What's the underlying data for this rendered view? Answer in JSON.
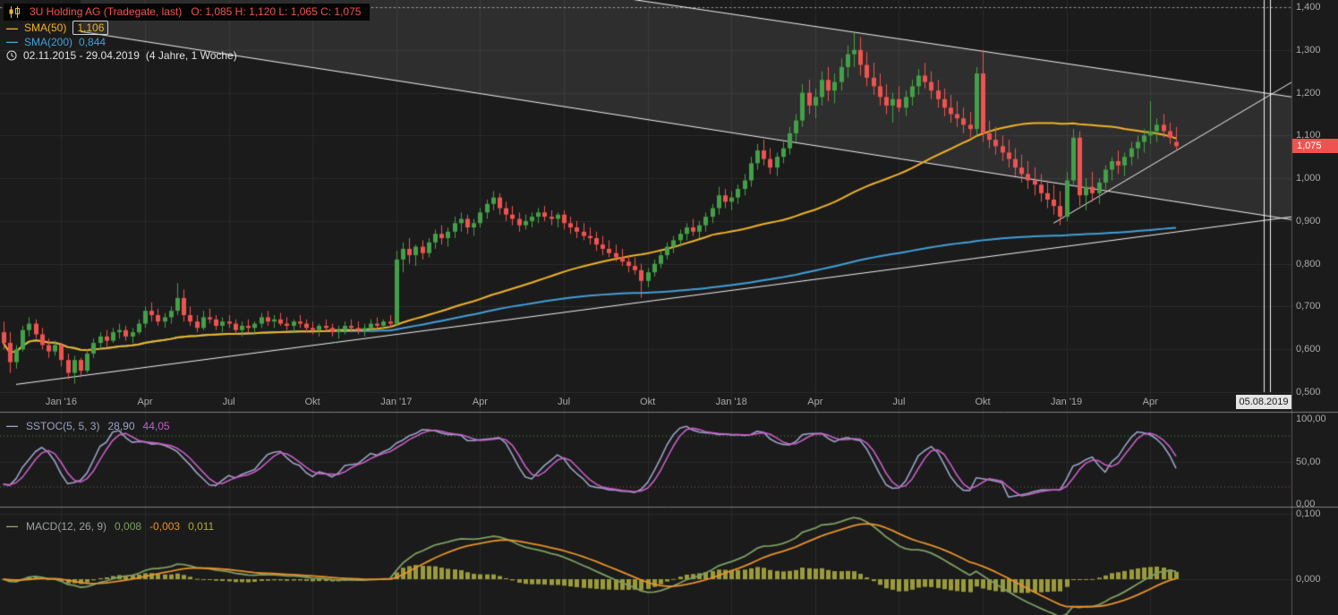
{
  "header": {
    "title": "3U Holding AG (Tradegate, last)",
    "ohlc_text": "O: 1,085  H: 1,120  L: 1,065  C: 1,075",
    "sma50_label": "SMA(50)",
    "sma50_value": "1,106",
    "sma200_label": "SMA(200)",
    "sma200_value": "0,844",
    "date_range": "02.11.2015 - 29.04.2019",
    "range_detail": "(4 Jahre, 1 Woche)"
  },
  "price_tag": "1,075",
  "date_tag": "05.08.2019",
  "panes": {
    "sstoc": {
      "label": "SSTOC(5, 5, 3)",
      "k_value": "28,90",
      "d_value": "44,05"
    },
    "macd": {
      "label": "MACD(12, 26, 9)",
      "macd_value": "0,008",
      "signal_value": "-0,003",
      "hist_value": "0,011"
    }
  },
  "chart_data": {
    "type": "candlestick",
    "title": "3U Holding AG",
    "exchange": "Tradegate, last",
    "interval": "1 Woche",
    "date_range": [
      "02.11.2015",
      "29.04.2019"
    ],
    "ylim": [
      0.5,
      1.4
    ],
    "last_price": 1.075,
    "last_ohlc": {
      "o": 1.085,
      "h": 1.12,
      "l": 1.065,
      "c": 1.075
    },
    "top_level": 1.4,
    "future_date_label": "05.08.2019",
    "y_ticks": [
      {
        "label": "1,400",
        "value": 1.4
      },
      {
        "label": "1,300",
        "value": 1.3
      },
      {
        "label": "1,200",
        "value": 1.2
      },
      {
        "label": "1,100",
        "value": 1.1
      },
      {
        "label": "1,000",
        "value": 1.0
      },
      {
        "label": "0,900",
        "value": 0.9
      },
      {
        "label": "0,800",
        "value": 0.8
      },
      {
        "label": "0,700",
        "value": 0.7
      },
      {
        "label": "0,600",
        "value": 0.6
      },
      {
        "label": "0,500",
        "value": 0.5
      }
    ],
    "x_ticks": [
      {
        "label": "Jan '16",
        "week": 9
      },
      {
        "label": "Apr",
        "week": 22
      },
      {
        "label": "Jul",
        "week": 35
      },
      {
        "label": "Okt",
        "week": 48
      },
      {
        "label": "Jan '17",
        "week": 61
      },
      {
        "label": "Apr",
        "week": 74
      },
      {
        "label": "Jul",
        "week": 87
      },
      {
        "label": "Okt",
        "week": 100
      },
      {
        "label": "Jan '18",
        "week": 113
      },
      {
        "label": "Apr",
        "week": 126
      },
      {
        "label": "Jul",
        "week": 139
      },
      {
        "label": "Okt",
        "week": 152
      },
      {
        "label": "Jan '19",
        "week": 165
      },
      {
        "label": "Apr",
        "week": 178
      }
    ],
    "sstoc_ticks": [
      {
        "label": "100,00",
        "value": 100
      },
      {
        "label": "50,00",
        "value": 50
      },
      {
        "label": "0,00",
        "value": 0
      }
    ],
    "candles": [
      [
        0.64,
        0.665,
        0.6,
        0.615
      ],
      [
        0.615,
        0.64,
        0.545,
        0.57
      ],
      [
        0.57,
        0.61,
        0.555,
        0.6
      ],
      [
        0.6,
        0.655,
        0.595,
        0.645
      ],
      [
        0.645,
        0.675,
        0.63,
        0.66
      ],
      [
        0.66,
        0.67,
        0.625,
        0.635
      ],
      [
        0.635,
        0.65,
        0.6,
        0.61
      ],
      [
        0.61,
        0.625,
        0.58,
        0.595
      ],
      [
        0.595,
        0.62,
        0.585,
        0.61
      ],
      [
        0.61,
        0.615,
        0.56,
        0.575
      ],
      [
        0.575,
        0.59,
        0.53,
        0.545
      ],
      [
        0.545,
        0.585,
        0.52,
        0.575
      ],
      [
        0.575,
        0.58,
        0.535,
        0.55
      ],
      [
        0.55,
        0.6,
        0.545,
        0.59
      ],
      [
        0.59,
        0.625,
        0.58,
        0.615
      ],
      [
        0.615,
        0.64,
        0.6,
        0.63
      ],
      [
        0.63,
        0.645,
        0.605,
        0.62
      ],
      [
        0.62,
        0.65,
        0.615,
        0.64
      ],
      [
        0.64,
        0.66,
        0.625,
        0.645
      ],
      [
        0.645,
        0.655,
        0.62,
        0.63
      ],
      [
        0.63,
        0.65,
        0.615,
        0.64
      ],
      [
        0.64,
        0.67,
        0.635,
        0.66
      ],
      [
        0.66,
        0.7,
        0.65,
        0.69
      ],
      [
        0.69,
        0.71,
        0.665,
        0.68
      ],
      [
        0.68,
        0.695,
        0.655,
        0.665
      ],
      [
        0.665,
        0.685,
        0.65,
        0.675
      ],
      [
        0.675,
        0.7,
        0.66,
        0.69
      ],
      [
        0.69,
        0.755,
        0.68,
        0.72
      ],
      [
        0.72,
        0.74,
        0.665,
        0.68
      ],
      [
        0.68,
        0.7,
        0.655,
        0.665
      ],
      [
        0.665,
        0.68,
        0.64,
        0.65
      ],
      [
        0.65,
        0.69,
        0.645,
        0.675
      ],
      [
        0.675,
        0.695,
        0.66,
        0.67
      ],
      [
        0.67,
        0.68,
        0.645,
        0.655
      ],
      [
        0.655,
        0.675,
        0.64,
        0.665
      ],
      [
        0.665,
        0.68,
        0.65,
        0.66
      ],
      [
        0.66,
        0.67,
        0.635,
        0.645
      ],
      [
        0.645,
        0.665,
        0.63,
        0.655
      ],
      [
        0.655,
        0.67,
        0.64,
        0.65
      ],
      [
        0.65,
        0.665,
        0.635,
        0.66
      ],
      [
        0.66,
        0.685,
        0.65,
        0.675
      ],
      [
        0.675,
        0.69,
        0.655,
        0.665
      ],
      [
        0.665,
        0.68,
        0.65,
        0.67
      ],
      [
        0.67,
        0.685,
        0.655,
        0.66
      ],
      [
        0.66,
        0.675,
        0.645,
        0.655
      ],
      [
        0.655,
        0.67,
        0.64,
        0.665
      ],
      [
        0.665,
        0.68,
        0.65,
        0.66
      ],
      [
        0.66,
        0.67,
        0.64,
        0.65
      ],
      [
        0.65,
        0.665,
        0.635,
        0.645
      ],
      [
        0.645,
        0.66,
        0.63,
        0.655
      ],
      [
        0.655,
        0.67,
        0.64,
        0.65
      ],
      [
        0.65,
        0.66,
        0.63,
        0.64
      ],
      [
        0.64,
        0.655,
        0.625,
        0.645
      ],
      [
        0.645,
        0.665,
        0.635,
        0.655
      ],
      [
        0.655,
        0.67,
        0.64,
        0.65
      ],
      [
        0.65,
        0.665,
        0.635,
        0.645
      ],
      [
        0.645,
        0.66,
        0.63,
        0.65
      ],
      [
        0.65,
        0.67,
        0.64,
        0.66
      ],
      [
        0.66,
        0.675,
        0.645,
        0.655
      ],
      [
        0.655,
        0.67,
        0.645,
        0.665
      ],
      [
        0.665,
        0.68,
        0.65,
        0.66
      ],
      [
        0.66,
        0.83,
        0.655,
        0.81
      ],
      [
        0.81,
        0.85,
        0.78,
        0.835
      ],
      [
        0.835,
        0.86,
        0.8,
        0.82
      ],
      [
        0.82,
        0.845,
        0.795,
        0.84
      ],
      [
        0.84,
        0.855,
        0.81,
        0.825
      ],
      [
        0.825,
        0.86,
        0.815,
        0.85
      ],
      [
        0.85,
        0.88,
        0.835,
        0.87
      ],
      [
        0.87,
        0.89,
        0.845,
        0.86
      ],
      [
        0.86,
        0.885,
        0.84,
        0.875
      ],
      [
        0.875,
        0.91,
        0.86,
        0.895
      ],
      [
        0.895,
        0.92,
        0.875,
        0.905
      ],
      [
        0.905,
        0.915,
        0.87,
        0.885
      ],
      [
        0.885,
        0.905,
        0.865,
        0.895
      ],
      [
        0.895,
        0.93,
        0.885,
        0.92
      ],
      [
        0.92,
        0.95,
        0.905,
        0.94
      ],
      [
        0.94,
        0.97,
        0.925,
        0.955
      ],
      [
        0.955,
        0.965,
        0.915,
        0.93
      ],
      [
        0.93,
        0.945,
        0.9,
        0.915
      ],
      [
        0.915,
        0.935,
        0.89,
        0.905
      ],
      [
        0.905,
        0.92,
        0.875,
        0.89
      ],
      [
        0.89,
        0.915,
        0.88,
        0.9
      ],
      [
        0.9,
        0.92,
        0.885,
        0.91
      ],
      [
        0.91,
        0.93,
        0.895,
        0.92
      ],
      [
        0.92,
        0.935,
        0.9,
        0.91
      ],
      [
        0.91,
        0.925,
        0.89,
        0.905
      ],
      [
        0.905,
        0.92,
        0.885,
        0.915
      ],
      [
        0.915,
        0.925,
        0.88,
        0.895
      ],
      [
        0.895,
        0.91,
        0.87,
        0.885
      ],
      [
        0.885,
        0.9,
        0.86,
        0.875
      ],
      [
        0.875,
        0.895,
        0.855,
        0.865
      ],
      [
        0.865,
        0.885,
        0.845,
        0.86
      ],
      [
        0.86,
        0.875,
        0.83,
        0.845
      ],
      [
        0.845,
        0.865,
        0.82,
        0.835
      ],
      [
        0.835,
        0.855,
        0.815,
        0.825
      ],
      [
        0.825,
        0.845,
        0.805,
        0.815
      ],
      [
        0.815,
        0.835,
        0.795,
        0.805
      ],
      [
        0.805,
        0.82,
        0.78,
        0.795
      ],
      [
        0.795,
        0.815,
        0.775,
        0.785
      ],
      [
        0.785,
        0.8,
        0.72,
        0.76
      ],
      [
        0.76,
        0.79,
        0.745,
        0.78
      ],
      [
        0.78,
        0.81,
        0.77,
        0.8
      ],
      [
        0.8,
        0.83,
        0.79,
        0.82
      ],
      [
        0.82,
        0.85,
        0.81,
        0.84
      ],
      [
        0.84,
        0.865,
        0.825,
        0.855
      ],
      [
        0.855,
        0.88,
        0.84,
        0.87
      ],
      [
        0.87,
        0.895,
        0.855,
        0.885
      ],
      [
        0.885,
        0.905,
        0.865,
        0.875
      ],
      [
        0.875,
        0.9,
        0.86,
        0.89
      ],
      [
        0.89,
        0.92,
        0.875,
        0.91
      ],
      [
        0.91,
        0.94,
        0.895,
        0.93
      ],
      [
        0.93,
        0.98,
        0.915,
        0.96
      ],
      [
        0.96,
        0.975,
        0.93,
        0.945
      ],
      [
        0.945,
        0.97,
        0.925,
        0.955
      ],
      [
        0.955,
        0.985,
        0.94,
        0.975
      ],
      [
        0.975,
        1.01,
        0.96,
        0.995
      ],
      [
        0.995,
        1.05,
        0.98,
        1.035
      ],
      [
        1.035,
        1.08,
        1.02,
        1.065
      ],
      [
        1.065,
        1.09,
        1.03,
        1.045
      ],
      [
        1.045,
        1.07,
        1.01,
        1.025
      ],
      [
        1.025,
        1.06,
        1.005,
        1.05
      ],
      [
        1.05,
        1.085,
        1.035,
        1.07
      ],
      [
        1.07,
        1.12,
        1.055,
        1.105
      ],
      [
        1.105,
        1.15,
        1.085,
        1.135
      ],
      [
        1.135,
        1.22,
        1.12,
        1.2
      ],
      [
        1.2,
        1.23,
        1.15,
        1.17
      ],
      [
        1.17,
        1.21,
        1.14,
        1.19
      ],
      [
        1.19,
        1.25,
        1.17,
        1.23
      ],
      [
        1.23,
        1.26,
        1.18,
        1.205
      ],
      [
        1.205,
        1.245,
        1.175,
        1.225
      ],
      [
        1.225,
        1.28,
        1.205,
        1.26
      ],
      [
        1.26,
        1.31,
        1.235,
        1.29
      ],
      [
        1.29,
        1.34,
        1.26,
        1.3
      ],
      [
        1.3,
        1.33,
        1.24,
        1.265
      ],
      [
        1.265,
        1.295,
        1.215,
        1.235
      ],
      [
        1.235,
        1.27,
        1.195,
        1.215
      ],
      [
        1.215,
        1.245,
        1.17,
        1.19
      ],
      [
        1.19,
        1.22,
        1.15,
        1.17
      ],
      [
        1.17,
        1.2,
        1.13,
        1.185
      ],
      [
        1.185,
        1.215,
        1.155,
        1.165
      ],
      [
        1.165,
        1.205,
        1.145,
        1.19
      ],
      [
        1.19,
        1.23,
        1.17,
        1.215
      ],
      [
        1.215,
        1.255,
        1.195,
        1.24
      ],
      [
        1.24,
        1.27,
        1.21,
        1.225
      ],
      [
        1.225,
        1.25,
        1.185,
        1.205
      ],
      [
        1.205,
        1.23,
        1.165,
        1.185
      ],
      [
        1.185,
        1.21,
        1.145,
        1.165
      ],
      [
        1.165,
        1.195,
        1.13,
        1.15
      ],
      [
        1.15,
        1.18,
        1.12,
        1.14
      ],
      [
        1.14,
        1.165,
        1.105,
        1.125
      ],
      [
        1.125,
        1.155,
        1.095,
        1.115
      ],
      [
        1.115,
        1.26,
        1.1,
        1.245
      ],
      [
        1.245,
        1.3,
        1.085,
        1.105
      ],
      [
        1.105,
        1.135,
        1.07,
        1.09
      ],
      [
        1.09,
        1.12,
        1.055,
        1.075
      ],
      [
        1.075,
        1.1,
        1.04,
        1.06
      ],
      [
        1.06,
        1.09,
        1.025,
        1.045
      ],
      [
        1.045,
        1.07,
        1.005,
        1.025
      ],
      [
        1.025,
        1.055,
        0.99,
        1.01
      ],
      [
        1.01,
        1.04,
        0.975,
        0.995
      ],
      [
        0.995,
        1.025,
        0.96,
        0.985
      ],
      [
        0.985,
        1.01,
        0.945,
        0.965
      ],
      [
        0.965,
        0.995,
        0.93,
        0.95
      ],
      [
        0.95,
        0.985,
        0.915,
        0.935
      ],
      [
        0.935,
        0.97,
        0.89,
        0.91
      ],
      [
        0.91,
        1.015,
        0.9,
        0.995
      ],
      [
        0.995,
        1.115,
        0.98,
        1.095
      ],
      [
        1.095,
        1.11,
        0.935,
        0.96
      ],
      [
        0.96,
        1.0,
        0.925,
        0.98
      ],
      [
        0.98,
        1.015,
        0.945,
        0.965
      ],
      [
        0.965,
        1.0,
        0.94,
        0.99
      ],
      [
        0.99,
        1.03,
        0.975,
        1.02
      ],
      [
        1.02,
        1.05,
        0.995,
        1.04
      ],
      [
        1.04,
        1.065,
        1.01,
        1.03
      ],
      [
        1.03,
        1.06,
        1.005,
        1.05
      ],
      [
        1.05,
        1.085,
        1.03,
        1.07
      ],
      [
        1.07,
        1.1,
        1.045,
        1.085
      ],
      [
        1.085,
        1.115,
        1.06,
        1.1
      ],
      [
        1.1,
        1.18,
        1.08,
        1.11
      ],
      [
        1.11,
        1.14,
        1.085,
        1.125
      ],
      [
        1.125,
        1.15,
        1.095,
        1.11
      ],
      [
        1.11,
        1.13,
        1.08,
        1.095
      ],
      [
        1.085,
        1.12,
        1.065,
        1.075
      ]
    ],
    "trendlines": [
      {
        "name": "descending-resistance-upper",
        "w1": 60,
        "p1": 1.502,
        "w2": 200,
        "p2": 1.19
      },
      {
        "name": "descending-resistance-lower",
        "w1": 12,
        "p1": 1.343,
        "w2": 200,
        "p2": 0.903
      },
      {
        "name": "ascending-support",
        "w1": 2,
        "p1": 0.518,
        "w2": 200,
        "p2": 0.91
      },
      {
        "name": "ascending-breakout",
        "w1": 163,
        "p1": 0.895,
        "w2": 200,
        "p2": 1.225
      }
    ],
    "channel": {
      "upper": {
        "w1": 60,
        "p1": 1.502,
        "w2": 200,
        "p2": 1.19
      },
      "lower": {
        "w1": 12,
        "p1": 1.343,
        "w2": 200,
        "p2": 0.903
      }
    },
    "vertical_lines": [
      {
        "week": 195.6
      },
      {
        "week": 196.6
      }
    ],
    "indicators": {
      "sma50": {
        "period": 50,
        "value": 1.106
      },
      "sma200": {
        "period": 200,
        "value": 0.844
      },
      "sstoc": {
        "params": [
          5,
          5,
          3
        ],
        "k": 28.9,
        "d": 44.05,
        "upper_band": 80,
        "lower_band": 20
      },
      "macd": {
        "params": [
          12,
          26,
          9
        ],
        "macd": 0.008,
        "signal": -0.003,
        "hist": 0.011,
        "ticks": [
          {
            "label": "0,100",
            "value": 0.1
          },
          {
            "label": "0,000",
            "value": 0.0
          }
        ]
      }
    },
    "colors": {
      "background": "#1b1b1b",
      "grid": "#2a2a2a",
      "up": "#43a047",
      "down": "#ef5350",
      "sma50": "#f0b325",
      "sma200": "#42a0d8",
      "trendline": "#f2f2f2",
      "channel_fill": "rgba(255,255,255,0.085)",
      "sstoc_k": "#9aa3c4",
      "sstoc_d": "#c75fc7",
      "macd_line": "#7d9f63",
      "macd_signal": "#e8922a",
      "macd_hist": "#9a9a3c",
      "price_tag_bg": "#ef5350",
      "overbought": "#4f8f4f",
      "oversold": "#9c5252",
      "title_red": "#f0534b",
      "separator": "#7e7e7e"
    }
  }
}
